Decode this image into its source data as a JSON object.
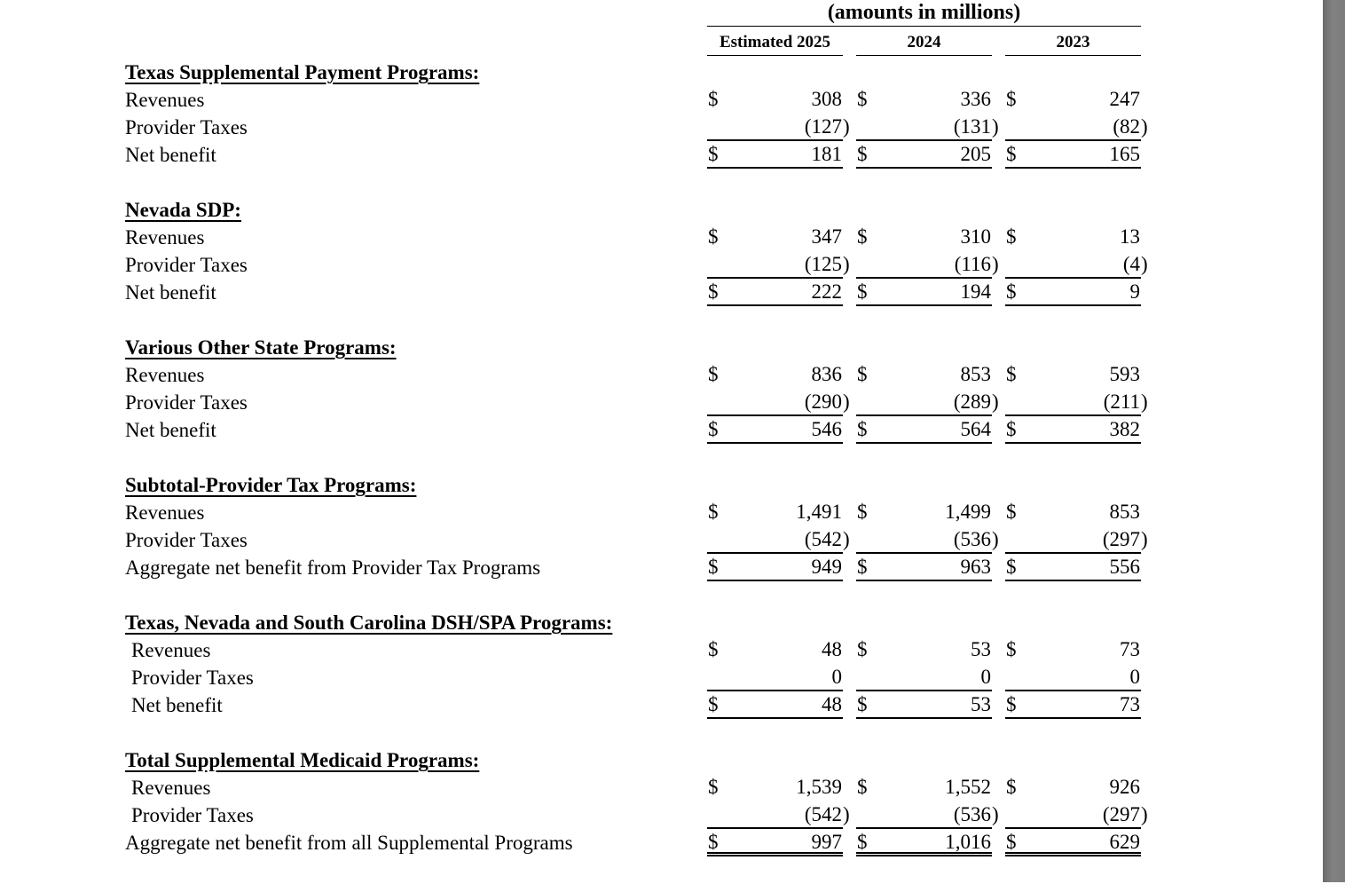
{
  "colors": {
    "background": "#ffffff",
    "text": "#000000",
    "rule": "#000000",
    "scrollbar_gray": "#7c7c7c"
  },
  "table": {
    "units_label": "(amounts in millions)",
    "columns": [
      "Estimated 2025",
      "2024",
      "2023"
    ],
    "sections": [
      {
        "heading": "Texas Supplemental Payment Programs:",
        "rows": [
          {
            "label": "Revenues",
            "dollar": true,
            "values": [
              "308",
              "336",
              "247"
            ]
          },
          {
            "label": "Provider Taxes",
            "dollar": false,
            "values": [
              "(127)",
              "(131)",
              "(82)"
            ],
            "rule_below": "single"
          },
          {
            "label": "Net benefit",
            "dollar": true,
            "values": [
              "181",
              "205",
              "165"
            ],
            "rule_below": "single"
          }
        ]
      },
      {
        "heading": "Nevada SDP:",
        "rows": [
          {
            "label": "Revenues",
            "dollar": true,
            "values": [
              "347",
              "310",
              "13"
            ]
          },
          {
            "label": "Provider Taxes",
            "dollar": false,
            "values": [
              "(125)",
              "(116)",
              "(4)"
            ],
            "rule_below": "single"
          },
          {
            "label": "Net benefit",
            "dollar": true,
            "values": [
              "222",
              "194",
              "9"
            ],
            "rule_below": "single"
          }
        ]
      },
      {
        "heading": "Various Other State Programs:",
        "rows": [
          {
            "label": "Revenues",
            "dollar": true,
            "values": [
              "836",
              "853",
              "593"
            ]
          },
          {
            "label": "Provider Taxes",
            "dollar": false,
            "values": [
              "(290)",
              "(289)",
              "(211)"
            ],
            "rule_below": "single"
          },
          {
            "label": "Net benefit",
            "dollar": true,
            "values": [
              "546",
              "564",
              "382"
            ],
            "rule_below": "single"
          }
        ]
      },
      {
        "heading": "Subtotal-Provider Tax Programs:",
        "rows": [
          {
            "label": "Revenues",
            "dollar": true,
            "values": [
              "1,491",
              "1,499",
              "853"
            ]
          },
          {
            "label": "Provider Taxes",
            "dollar": false,
            "values": [
              "(542)",
              "(536)",
              "(297)"
            ],
            "rule_below": "single"
          },
          {
            "label": "Aggregate net benefit from Provider Tax Programs",
            "dollar": true,
            "values": [
              "949",
              "963",
              "556"
            ],
            "rule_below": "single"
          }
        ]
      },
      {
        "heading": "Texas, Nevada and South Carolina DSH/SPA Programs:",
        "rows": [
          {
            "label": "Revenues",
            "dollar": true,
            "indent": true,
            "values": [
              "48",
              "53",
              "73"
            ]
          },
          {
            "label": "Provider Taxes",
            "dollar": false,
            "indent": true,
            "values": [
              "0",
              "0",
              "0"
            ],
            "rule_below": "single"
          },
          {
            "label": "Net benefit",
            "dollar": true,
            "indent": true,
            "values": [
              "48",
              "53",
              "73"
            ],
            "rule_below": "single"
          }
        ]
      },
      {
        "heading": "Total Supplemental Medicaid Programs:",
        "rows": [
          {
            "label": "Revenues",
            "dollar": true,
            "indent": true,
            "values": [
              "1,539",
              "1,552",
              "926"
            ]
          },
          {
            "label": "Provider Taxes",
            "dollar": false,
            "indent": true,
            "values": [
              "(542)",
              "(536)",
              "(297)"
            ],
            "rule_below": "single"
          },
          {
            "label": "Aggregate net benefit from all Supplemental Programs",
            "dollar": true,
            "values": [
              "997",
              "1,016",
              "629"
            ],
            "rule_below": "double"
          }
        ]
      }
    ]
  }
}
